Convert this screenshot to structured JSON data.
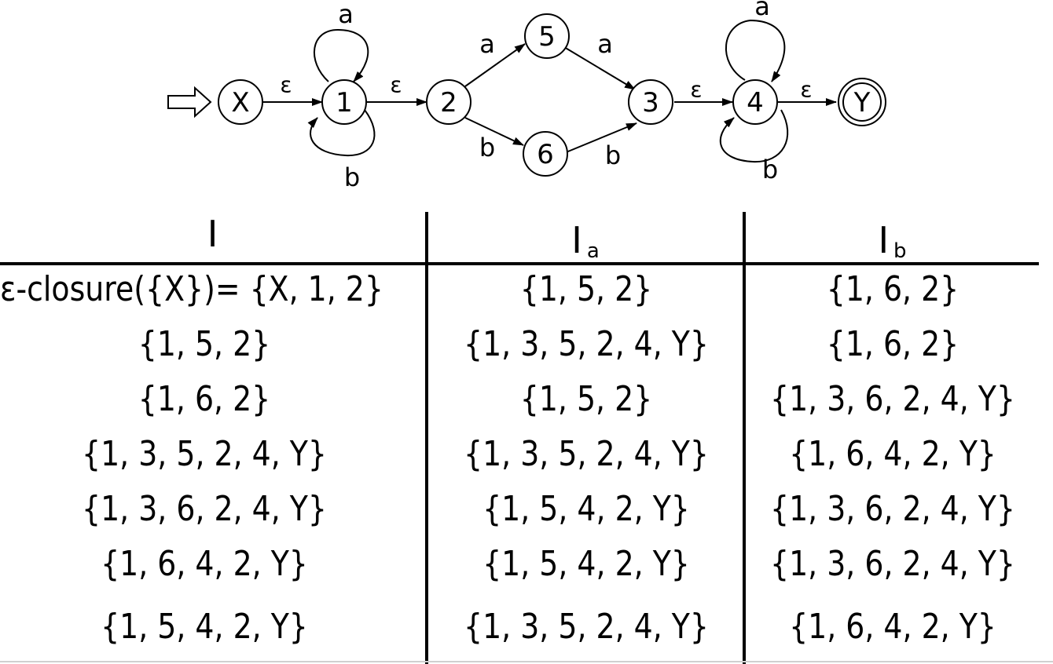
{
  "diagram": {
    "states": [
      {
        "id": "X",
        "label": "X"
      },
      {
        "id": "1",
        "label": "1"
      },
      {
        "id": "2",
        "label": "2"
      },
      {
        "id": "5",
        "label": "5"
      },
      {
        "id": "6",
        "label": "6"
      },
      {
        "id": "3",
        "label": "3"
      },
      {
        "id": "4",
        "label": "4"
      },
      {
        "id": "Y",
        "label": "Y",
        "accepting": true
      }
    ],
    "start_state": "X",
    "edges": [
      {
        "from": "X",
        "to": "1",
        "label": "ε"
      },
      {
        "from": "1",
        "to": "1",
        "label": "a"
      },
      {
        "from": "1",
        "to": "1",
        "label": "b"
      },
      {
        "from": "1",
        "to": "2",
        "label": "ε"
      },
      {
        "from": "2",
        "to": "5",
        "label": "a"
      },
      {
        "from": "5",
        "to": "3",
        "label": "a"
      },
      {
        "from": "2",
        "to": "6",
        "label": "b"
      },
      {
        "from": "6",
        "to": "3",
        "label": "b"
      },
      {
        "from": "3",
        "to": "4",
        "label": "ε"
      },
      {
        "from": "4",
        "to": "4",
        "label": "a"
      },
      {
        "from": "4",
        "to": "4",
        "label": "b"
      },
      {
        "from": "4",
        "to": "Y",
        "label": "ε"
      }
    ]
  },
  "table": {
    "headers": {
      "col0": "I",
      "col1_main": "I",
      "col1_sub": "a",
      "col2_main": "I",
      "col2_sub": "b"
    },
    "rows": [
      [
        "ε-closure({X})= {X, 1, 2}",
        "{1, 5, 2}",
        "{1, 6, 2}"
      ],
      [
        "{1, 5, 2}",
        "{1, 3, 5, 2, 4, Y}",
        "{1, 6, 2}"
      ],
      [
        "{1, 6, 2}",
        "{1, 5, 2}",
        "{1, 3, 6, 2, 4, Y}"
      ],
      [
        "{1, 3, 5, 2, 4, Y}",
        "{1, 3, 5, 2, 4, Y}",
        "{1, 6, 4, 2, Y}"
      ],
      [
        "{1, 3, 6, 2, 4, Y}",
        "{1, 5, 4, 2, Y}",
        "{1, 3, 6, 2, 4, Y}"
      ],
      [
        "{1, 6, 4, 2, Y}",
        "{1, 5, 4, 2, Y}",
        "{1, 3, 6, 2, 4, Y}"
      ],
      [
        "{1, 5, 4, 2, Y}",
        "{1, 3, 5, 2, 4, Y}",
        "{1, 6, 4, 2, Y}"
      ]
    ]
  }
}
